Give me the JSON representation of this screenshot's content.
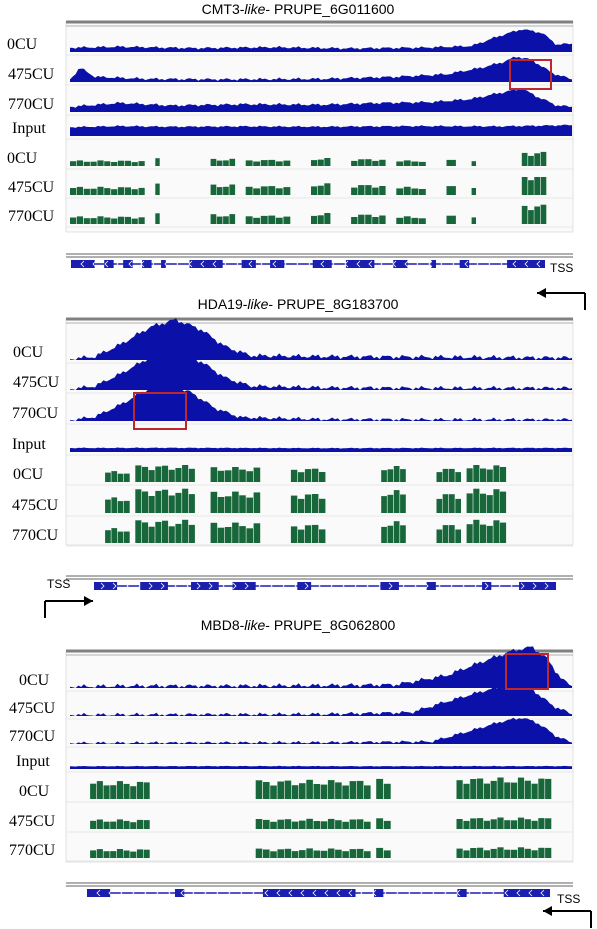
{
  "panels": [
    {
      "id": "cmt3",
      "title_prefix": "CMT3-",
      "title_italic": "like",
      "title_suffix": "- PRUPE_6G011600",
      "tss_label": "TSS",
      "tss_direction": "left",
      "highlight_track": "475CU",
      "tracks": [
        {
          "label": "0CU",
          "kind": "signal",
          "color": "#0a10a8"
        },
        {
          "label": "475CU",
          "kind": "signal",
          "color": "#0a10a8"
        },
        {
          "label": "770CU",
          "kind": "signal",
          "color": "#0a10a8"
        },
        {
          "label": "Input",
          "kind": "signal",
          "color": "#0a10a8"
        },
        {
          "label": "0CU",
          "kind": "methyl",
          "color": "#17673a"
        },
        {
          "label": "475CU",
          "kind": "methyl",
          "color": "#17673a"
        },
        {
          "label": "770CU",
          "kind": "methyl",
          "color": "#17673a"
        }
      ]
    },
    {
      "id": "hda19",
      "title_prefix": "HDA19-",
      "title_italic": "like",
      "title_suffix": "- PRUPE_8G183700",
      "tss_label": "TSS",
      "tss_direction": "right",
      "highlight_track": "770CU",
      "tracks": [
        {
          "label": "0CU",
          "kind": "signal",
          "color": "#0a10a8"
        },
        {
          "label": "475CU",
          "kind": "signal",
          "color": "#0a10a8"
        },
        {
          "label": "770CU",
          "kind": "signal",
          "color": "#0a10a8"
        },
        {
          "label": "Input",
          "kind": "signal",
          "color": "#0a10a8"
        },
        {
          "label": "0CU",
          "kind": "methyl",
          "color": "#17673a"
        },
        {
          "label": "475CU",
          "kind": "methyl",
          "color": "#17673a"
        },
        {
          "label": "770CU",
          "kind": "methyl",
          "color": "#17673a"
        }
      ]
    },
    {
      "id": "mbd8",
      "title_prefix": "MBD8-",
      "title_italic": "like",
      "title_suffix": "- PRUPE_8G062800",
      "tss_label": "TSS",
      "tss_direction": "left",
      "highlight_track": "0CU",
      "tracks": [
        {
          "label": "0CU",
          "kind": "signal",
          "color": "#0a10a8"
        },
        {
          "label": "475CU",
          "kind": "signal",
          "color": "#0a10a8"
        },
        {
          "label": "770CU",
          "kind": "signal",
          "color": "#0a10a8"
        },
        {
          "label": "Input",
          "kind": "signal",
          "color": "#0a10a8"
        },
        {
          "label": "0CU",
          "kind": "methyl",
          "color": "#17673a"
        },
        {
          "label": "475CU",
          "kind": "methyl",
          "color": "#17673a"
        },
        {
          "label": "770CU",
          "kind": "methyl",
          "color": "#17673a"
        }
      ]
    }
  ],
  "colors": {
    "signal": "#0a10a8",
    "methyl": "#17673a",
    "highlight": "#c0272d",
    "gene": "#1a1fb0"
  }
}
